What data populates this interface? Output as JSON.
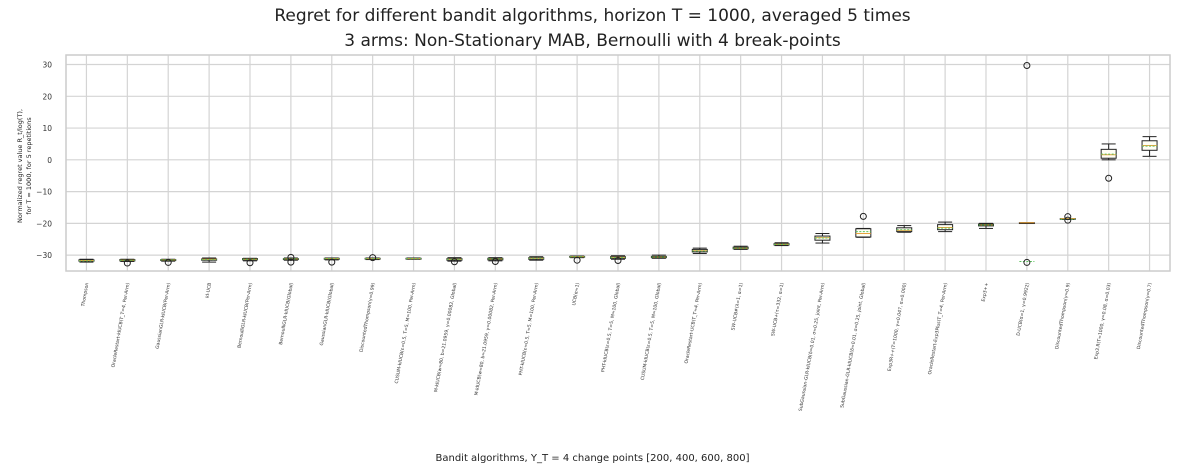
{
  "title_line1": "Regret for different bandit algorithms, horizon T = 1000, averaged 5 times",
  "title_line2": "3 arms: Non-Stationary MAB, Bernoulli with 4 break-points",
  "ylabel_line1": "Normalized regret value R_t/log(T),",
  "ylabel_line2": "for T = 1000, for 5 repetitions",
  "xlabel": "Bandit algorithms, Υ_T = 4 change points [200, 400, 600, 800]",
  "chart_data": {
    "type": "box",
    "ylim": [
      -35,
      33
    ],
    "yticks": [
      "30",
      "20",
      "10",
      "0",
      "−10",
      "−20",
      "−30"
    ],
    "grid": true,
    "categories": [
      "Thompson",
      "OracleRestart-klUCB(T_T=4, Per-Arm)",
      "GaussianGLR-klUCB(Per-Arm)",
      "kl-UCB",
      "BernoulliGLR-klUCB(Per-Arm)",
      "BernoulliGLR-klUCB(Global)",
      "GaussianGLR-klUCB(Global)",
      "DiscountedThompson(γ=0.99)",
      "CUSUM-klUCB(ε=0.5, T=5, M=100, Per-Arm)",
      "M-klUCB(w=80, b=21.0959, γ=0.00082, Global)",
      "M-klUCB(w=80, b=21.0959, γ=0.00082, Per-Arm)",
      "PHT-klUCB(ε=0.5, T=5, M=100, Per-Arm)",
      "UCB(α=1)",
      "PHT-klUCB(ε=0.5, T=5, M=100, Global)",
      "CUSUM-klUCB(ε=0.5, T=5, M=100, Global)",
      "OracleRestart-UCB(T_T=4, Per-Arm)",
      "SW-UCB#(λ=1, α=1)",
      "SW-UCB+(τ=332, α=1)",
      "SubGaussian-GLR-klUCB(δ=0.01, σ=0.25, joint, Per-Arm)",
      "SubGaussian-GLR-klUCB(δ=0.01, σ=0.25, joint, Global)",
      "Exp3R++(T=1000, γ=0.047, α=0.000)",
      "OracleRestart-Exp3Plus(T_T=4, Per-Arm)",
      "Exp3++",
      "D-UCB(α=1, γ=0.9922)",
      "DiscountedThompson(γ=0.9)",
      "Exp3.R(T=1000, γ=0.08, α=0.03)",
      "DiscountedThompson(γ=0.7)"
    ],
    "boxes": [
      {
        "whislo": -32.2,
        "q1": -31.9,
        "med": -31.7,
        "mean": -31.8,
        "q3": -31.5,
        "whishi": -31.3,
        "fliers": []
      },
      {
        "whislo": -32.0,
        "q1": -31.8,
        "med": -31.6,
        "mean": -31.6,
        "q3": -31.4,
        "whishi": -31.3,
        "fliers": [
          -32.5
        ]
      },
      {
        "whislo": -31.9,
        "q1": -31.7,
        "med": -31.5,
        "mean": -31.5,
        "q3": -31.4,
        "whishi": -31.3,
        "fliers": [
          -32.3
        ]
      },
      {
        "whislo": -32.2,
        "q1": -31.6,
        "med": -31.3,
        "mean": -31.4,
        "q3": -31.2,
        "whishi": -30.9,
        "fliers": []
      },
      {
        "whislo": -31.8,
        "q1": -31.5,
        "med": -31.3,
        "mean": -31.3,
        "q3": -31.1,
        "whishi": -31.0,
        "fliers": [
          -32.4
        ]
      },
      {
        "whislo": -31.6,
        "q1": -31.4,
        "med": -31.2,
        "mean": -31.2,
        "q3": -31.1,
        "whishi": -30.9,
        "fliers": [
          -30.7,
          -32.2
        ]
      },
      {
        "whislo": -31.5,
        "q1": -31.3,
        "med": -31.1,
        "mean": -31.1,
        "q3": -31.0,
        "whishi": -30.9,
        "fliers": [
          -32.2
        ]
      },
      {
        "whislo": -31.4,
        "q1": -31.2,
        "med": -31.1,
        "mean": -31.1,
        "q3": -31.0,
        "whishi": -30.9,
        "fliers": [
          -30.8
        ]
      },
      {
        "whislo": -31.3,
        "q1": -31.2,
        "med": -31.1,
        "mean": -31.1,
        "q3": -31.0,
        "whishi": -30.9,
        "fliers": []
      },
      {
        "whislo": -31.9,
        "q1": -31.6,
        "med": -31.3,
        "mean": -31.3,
        "q3": -31.1,
        "whishi": -30.8,
        "fliers": [
          -32.1
        ]
      },
      {
        "whislo": -31.8,
        "q1": -31.5,
        "med": -31.2,
        "mean": -31.2,
        "q3": -31.0,
        "whishi": -30.8,
        "fliers": [
          -32.0
        ]
      },
      {
        "whislo": -31.6,
        "q1": -31.3,
        "med": -31.0,
        "mean": -31.0,
        "q3": -30.8,
        "whishi": -30.5,
        "fliers": []
      },
      {
        "whislo": -30.8,
        "q1": -30.6,
        "med": -30.5,
        "mean": -30.5,
        "q3": -30.4,
        "whishi": -30.3,
        "fliers": [
          -31.6
        ]
      },
      {
        "whislo": -31.3,
        "q1": -31.0,
        "med": -30.7,
        "mean": -30.8,
        "q3": -30.5,
        "whishi": -30.2,
        "fliers": [
          -31.7
        ]
      },
      {
        "whislo": -31.0,
        "q1": -30.8,
        "med": -30.6,
        "mean": -30.6,
        "q3": -30.4,
        "whishi": -30.0,
        "fliers": []
      },
      {
        "whislo": -29.5,
        "q1": -29.0,
        "med": -28.6,
        "mean": -28.7,
        "q3": -28.2,
        "whishi": -27.8,
        "fliers": []
      },
      {
        "whislo": -28.2,
        "q1": -28.0,
        "med": -27.8,
        "mean": -27.8,
        "q3": -27.5,
        "whishi": -27.2,
        "fliers": []
      },
      {
        "whislo": -27.0,
        "q1": -26.8,
        "med": -26.6,
        "mean": -26.6,
        "q3": -26.4,
        "whishi": -26.1,
        "fliers": []
      },
      {
        "whislo": -26.2,
        "q1": -25.3,
        "med": -24.5,
        "mean": -24.6,
        "q3": -24.0,
        "whishi": -23.2,
        "fliers": []
      },
      {
        "whislo": -24.4,
        "q1": -24.3,
        "med": -23.2,
        "mean": -22.6,
        "q3": -21.7,
        "whishi": -21.6,
        "fliers": [
          -17.8
        ]
      },
      {
        "whislo": -22.8,
        "q1": -22.6,
        "med": -22.2,
        "mean": -22.0,
        "q3": -21.4,
        "whishi": -20.7,
        "fliers": []
      },
      {
        "whislo": -22.6,
        "q1": -22.0,
        "med": -21.3,
        "mean": -21.5,
        "q3": -20.4,
        "whishi": -19.6,
        "fliers": []
      },
      {
        "whislo": -21.6,
        "q1": -20.8,
        "med": -20.5,
        "mean": -20.5,
        "q3": -20.2,
        "whishi": -20.0,
        "fliers": []
      },
      {
        "whislo": -19.8,
        "q1": -19.8,
        "med": -19.8,
        "mean": -32.0,
        "q3": -19.8,
        "whishi": -19.8,
        "fliers": [
          29.7,
          -32.3
        ]
      },
      {
        "whislo": -18.5,
        "q1": -18.5,
        "med": -18.5,
        "mean": -18.7,
        "q3": -18.5,
        "whishi": -18.5,
        "fliers": [
          -17.9,
          -19.0
        ]
      },
      {
        "whislo": 0.0,
        "q1": 0.5,
        "med": 1.6,
        "mean": 1.8,
        "q3": 3.3,
        "whishi": 5.0,
        "fliers": [
          -5.8
        ]
      },
      {
        "whislo": 1.1,
        "q1": 3.0,
        "med": 4.5,
        "mean": 4.3,
        "q3": 6.0,
        "whishi": 7.3,
        "fliers": []
      }
    ]
  },
  "colors": {
    "grid": "#d4d4d4",
    "frame": "#cccccc",
    "median": "#e8a33d",
    "mean": "#5bc25b",
    "box": "#222222",
    "box_fill": "#fffff5"
  }
}
